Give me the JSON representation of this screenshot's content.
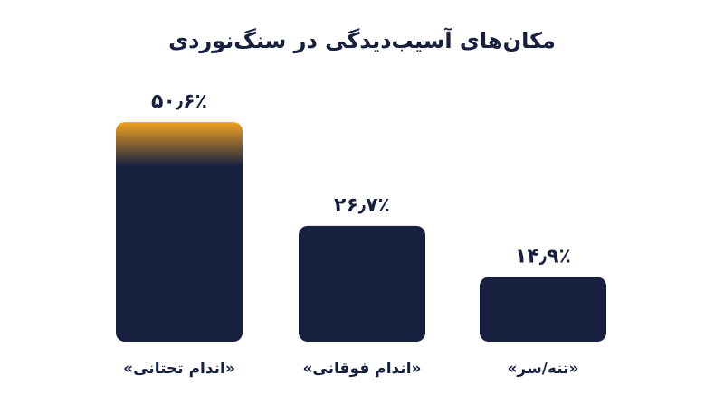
{
  "chart_data": {
    "type": "bar",
    "title": "مکان‌های آسیب‌دیدگی در سنگ‌نوردی",
    "categories": [
      "«اندام تحتانی»",
      "«اندام فوقانی»",
      "«تنه/سر»"
    ],
    "values": [
      50.6,
      26.7,
      14.9
    ],
    "value_labels": [
      "۵۰٫۶٪",
      "۲۶٫۷٪",
      "۱۴٫۹٪"
    ],
    "color": "#17213f",
    "highlight_color": "#f2a221"
  }
}
